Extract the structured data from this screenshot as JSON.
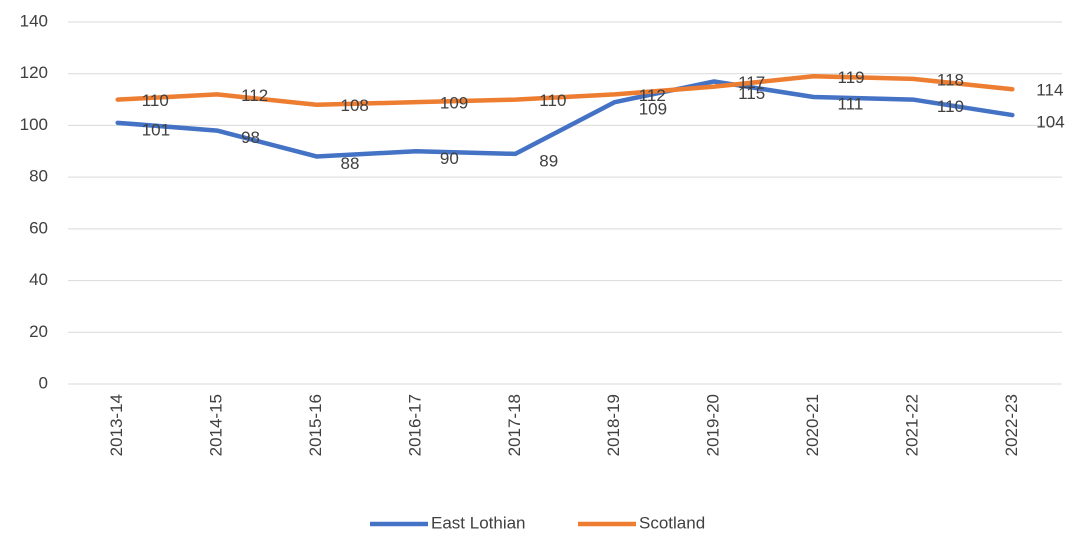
{
  "chart_data": {
    "type": "line",
    "categories": [
      "2013-14",
      "2014-15",
      "2015-16",
      "2016-17",
      "2017-18",
      "2018-19",
      "2019-20",
      "2020-21",
      "2021-22",
      "2022-23"
    ],
    "series": [
      {
        "name": "East Lothian",
        "color": "#4472c4",
        "values": [
          101,
          98,
          88,
          90,
          89,
          109,
          117,
          111,
          110,
          104
        ]
      },
      {
        "name": "Scotland",
        "color": "#ed7d31",
        "values": [
          110,
          112,
          108,
          109,
          110,
          112,
          115,
          119,
          118,
          114
        ]
      }
    ],
    "ylim": [
      0,
      140
    ],
    "yticks": [
      0,
      20,
      40,
      60,
      80,
      100,
      120,
      140
    ],
    "grid": true,
    "legend": "bottom"
  }
}
